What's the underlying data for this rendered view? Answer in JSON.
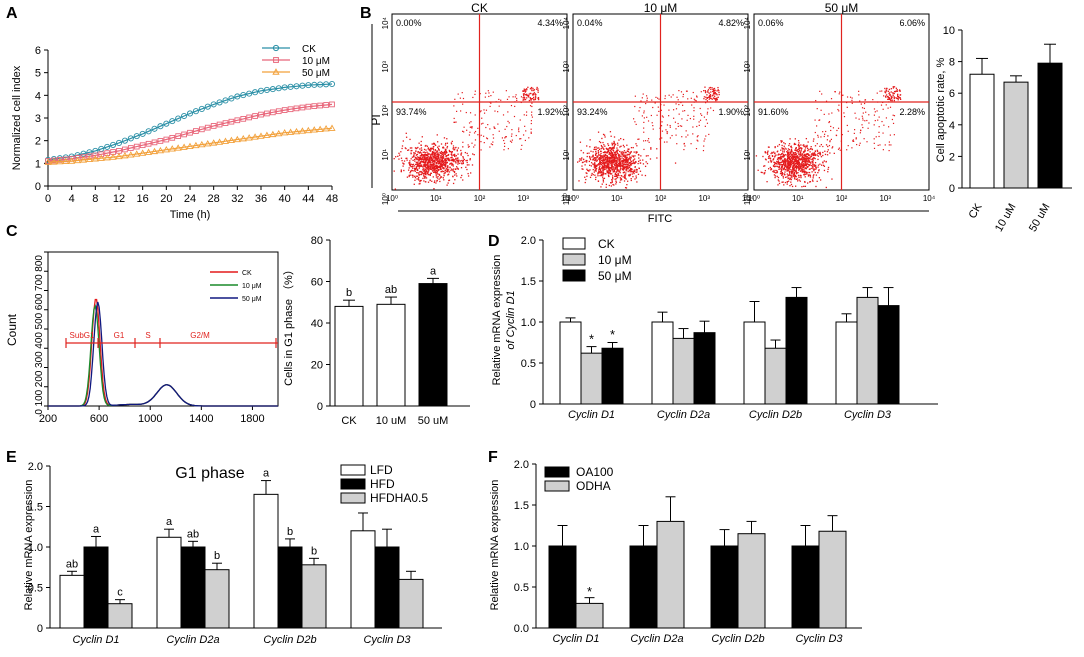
{
  "colors": {
    "ck": "#2a8fa6",
    "ten": "#e8667a",
    "fifty": "#f2a03a",
    "dot": "#e41a1c",
    "gate": "#e0231f",
    "white": "#ffffff",
    "gray": "#d0d0d0",
    "black": "#000000",
    "cc_ck": "#e41a1c",
    "cc_ten": "#1a8a2a",
    "cc_fifty": "#101880"
  },
  "chart_data": [
    {
      "id": "A",
      "type": "line",
      "xlabel": "Time (h)",
      "ylabel": "Normalized cell index",
      "xlim": [
        0,
        48
      ],
      "ylim": [
        0,
        6
      ],
      "xticks": [
        "0",
        "4",
        "8",
        "12",
        "16",
        "20",
        "24",
        "28",
        "32",
        "36",
        "40",
        "44",
        "48"
      ],
      "yticks": [
        "0",
        "1",
        "2",
        "3",
        "4",
        "5",
        "6"
      ],
      "legend": [
        "CK",
        "10 μM",
        "50 μM"
      ],
      "series": [
        {
          "name": "CK",
          "x": [
            0,
            4,
            8,
            12,
            16,
            20,
            24,
            28,
            32,
            36,
            40,
            44,
            48
          ],
          "values": [
            1.15,
            1.3,
            1.55,
            1.9,
            2.3,
            2.75,
            3.2,
            3.6,
            3.95,
            4.2,
            4.35,
            4.45,
            4.5
          ]
        },
        {
          "name": "10 μM",
          "x": [
            0,
            4,
            8,
            12,
            16,
            20,
            24,
            28,
            32,
            36,
            40,
            44,
            48
          ],
          "values": [
            1.1,
            1.2,
            1.35,
            1.55,
            1.8,
            2.05,
            2.35,
            2.65,
            2.9,
            3.15,
            3.35,
            3.5,
            3.6
          ]
        },
        {
          "name": "50 μM",
          "x": [
            0,
            4,
            8,
            12,
            16,
            20,
            24,
            28,
            32,
            36,
            40,
            44,
            48
          ],
          "values": [
            1.05,
            1.1,
            1.2,
            1.3,
            1.45,
            1.6,
            1.75,
            1.9,
            2.05,
            2.2,
            2.35,
            2.45,
            2.55
          ]
        }
      ]
    },
    {
      "id": "B",
      "type": "scatter",
      "xlabel": "FITC",
      "ylabel": "PI",
      "axis_ticks": [
        "10⁰",
        "10¹",
        "10²",
        "10³",
        "10⁴"
      ],
      "plots": [
        {
          "title": "CK",
          "ul": "0.00%",
          "ur": "4.34%",
          "ll": "93.74%",
          "lr": "1.92%"
        },
        {
          "title": "10 μM",
          "ul": "0.04%",
          "ur": "4.82%",
          "ll": "93.24%",
          "lr": "1.90%"
        },
        {
          "title": "50 μM",
          "ul": "0.06%",
          "ur": "6.06%",
          "ll": "91.60%",
          "lr": "2.28%"
        }
      ]
    },
    {
      "id": "B-bar",
      "type": "bar",
      "ylabel": "Cell apoptotic rate, %",
      "ylim": [
        0,
        10
      ],
      "yticks": [
        "0",
        "2",
        "4",
        "6",
        "8",
        "10"
      ],
      "categories": [
        "CK",
        "10 uM",
        "50 uM"
      ],
      "values": [
        7.2,
        6.7,
        7.9
      ],
      "errors": [
        1.0,
        0.4,
        1.2
      ]
    },
    {
      "id": "C-hist",
      "type": "line",
      "ylabel": "Count",
      "xlim": [
        200,
        2000
      ],
      "ylim": [
        0,
        800
      ],
      "xticks": [
        "200",
        "600",
        "1000",
        "1400",
        "1800"
      ],
      "yticks": [
        "0",
        "100",
        "200",
        "300",
        "400",
        "500",
        "600",
        "700",
        "800"
      ],
      "legend": [
        "CK",
        "10  μM",
        "50  μM"
      ],
      "gates": [
        "SubG1",
        "G1",
        "S",
        "G2/M"
      ]
    },
    {
      "id": "C-bar",
      "type": "bar",
      "ylabel": "Cells in G1 phase  （%）",
      "ylim": [
        0,
        80
      ],
      "yticks": [
        "0",
        "20",
        "40",
        "60",
        "80"
      ],
      "categories": [
        "CK",
        "10 uM",
        "50 uM"
      ],
      "values": [
        48,
        49,
        59
      ],
      "errors": [
        3,
        3.5,
        2.5
      ],
      "letters": [
        "b",
        "ab",
        "a"
      ]
    },
    {
      "id": "D",
      "type": "bar",
      "ylabel": "Relative mRNA expression",
      "ylabel2": "of Cyclin D1",
      "ylim": [
        0,
        2.0
      ],
      "yticks": [
        "0",
        "0.5",
        "1.0",
        "1.5",
        "2.0"
      ],
      "categories": [
        "Cyclin D1",
        "Cyclin D2a",
        "Cyclin D2b",
        "Cyclin D3"
      ],
      "legend": [
        "CK",
        "10 μM",
        "50 μM"
      ],
      "series": [
        {
          "name": "CK",
          "values": [
            1.0,
            1.0,
            1.0,
            1.0
          ],
          "errors": [
            0.05,
            0.12,
            0.25,
            0.1
          ]
        },
        {
          "name": "10 μM",
          "values": [
            0.62,
            0.8,
            0.68,
            1.3
          ],
          "errors": [
            0.08,
            0.12,
            0.1,
            0.12
          ]
        },
        {
          "name": "50 μM",
          "values": [
            0.68,
            0.87,
            1.3,
            1.2
          ],
          "errors": [
            0.07,
            0.14,
            0.12,
            0.22
          ]
        }
      ],
      "stars": [
        "*",
        "*"
      ]
    },
    {
      "id": "E",
      "type": "bar",
      "title": "G1 phase",
      "ylabel": "Relative mRNA expression",
      "ylim": [
        0,
        2.0
      ],
      "yticks": [
        "0",
        "0.5",
        "1.0",
        "1.5",
        "2.0"
      ],
      "categories": [
        "Cyclin D1",
        "Cyclin D2a",
        "Cyclin D2b",
        "Cyclin D3"
      ],
      "legend": [
        "LFD",
        "HFD",
        "HFDHA0.5"
      ],
      "series": [
        {
          "name": "LFD",
          "values": [
            0.65,
            1.12,
            1.65,
            1.2
          ],
          "errors": [
            0.05,
            0.1,
            0.17,
            0.22
          ]
        },
        {
          "name": "HFD",
          "values": [
            1.0,
            1.0,
            1.0,
            1.0
          ],
          "errors": [
            0.13,
            0.07,
            0.1,
            0.22
          ]
        },
        {
          "name": "HFDHA0.5",
          "values": [
            0.3,
            0.72,
            0.78,
            0.6
          ],
          "errors": [
            0.05,
            0.08,
            0.08,
            0.1
          ]
        }
      ],
      "letters": [
        [
          "ab",
          "a",
          "c"
        ],
        [
          "a",
          "ab",
          "b"
        ],
        [
          "a",
          "b",
          "b"
        ],
        [
          "",
          "",
          ""
        ]
      ]
    },
    {
      "id": "F",
      "type": "bar",
      "ylabel": "Relative mRNA expression",
      "ylim": [
        0,
        2.0
      ],
      "yticks": [
        "0.0",
        "0.5",
        "1.0",
        "1.5",
        "2.0"
      ],
      "categories": [
        "Cyclin D1",
        "Cyclin D2a",
        "Cyclin D2b",
        "Cyclin D3"
      ],
      "legend": [
        "OA100",
        "ODHA"
      ],
      "series": [
        {
          "name": "OA100",
          "values": [
            1.0,
            1.0,
            1.0,
            1.0
          ],
          "errors": [
            0.25,
            0.25,
            0.2,
            0.25
          ]
        },
        {
          "name": "ODHA",
          "values": [
            0.3,
            1.3,
            1.15,
            1.18
          ],
          "errors": [
            0.07,
            0.3,
            0.15,
            0.19
          ]
        }
      ],
      "stars": [
        "*"
      ]
    }
  ],
  "panels": {
    "a": "A",
    "b": "B",
    "c": "C",
    "d": "D",
    "e": "E",
    "f": "F"
  }
}
